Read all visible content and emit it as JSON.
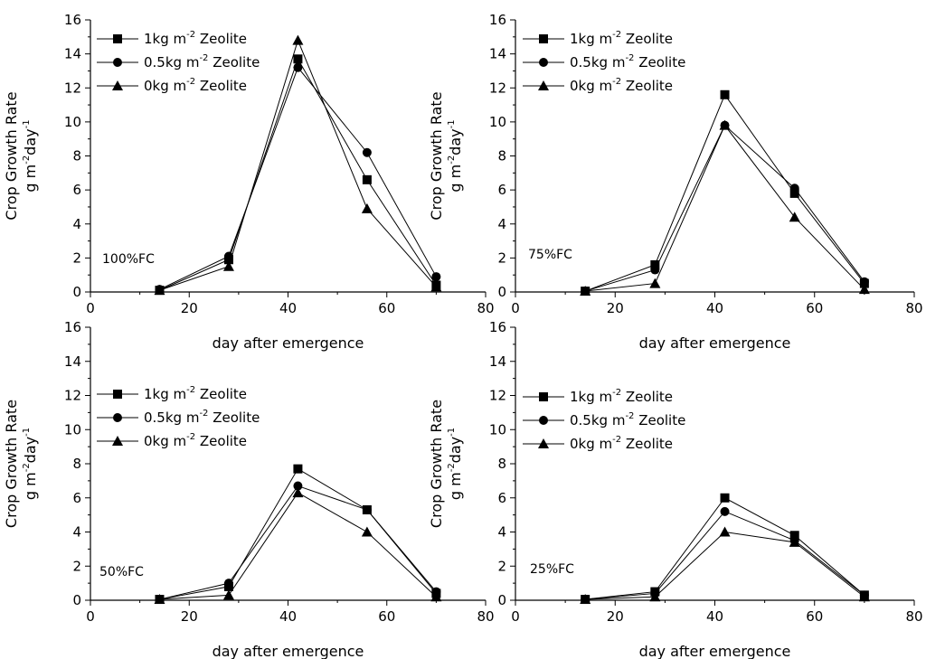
{
  "chart_data": [
    {
      "type": "line",
      "panel_label": "100%FC",
      "xlabel": "day after emergence",
      "ylabel": "Crop Growth Rate",
      "yunit": "g m-2day-1",
      "xlim": [
        0,
        80
      ],
      "ylim": [
        0,
        16
      ],
      "xticks": [
        "0",
        "20",
        "40",
        "60",
        "80"
      ],
      "yticks": [
        "0",
        "2",
        "4",
        "6",
        "8",
        "10",
        "12",
        "14",
        "16"
      ],
      "x": [
        14,
        28,
        42,
        56,
        70
      ],
      "series": [
        {
          "name": "1kg m-2 Zeolite",
          "marker": "square",
          "values": [
            0.1,
            1.9,
            13.7,
            6.6,
            0.4
          ]
        },
        {
          "name": "0.5kg m-2 Zeolite",
          "marker": "circle",
          "values": [
            0.15,
            2.1,
            13.2,
            8.2,
            0.9
          ]
        },
        {
          "name": "0kg m-2 Zeolite",
          "marker": "triangle",
          "values": [
            0.1,
            1.5,
            14.8,
            4.9,
            0.3
          ]
        }
      ]
    },
    {
      "type": "line",
      "panel_label": "75%FC",
      "xlabel": "day after emergence",
      "ylabel": "Crop Growth Rate",
      "yunit": "g m-2day-1",
      "xlim": [
        0,
        80
      ],
      "ylim": [
        0,
        16
      ],
      "xticks": [
        "0",
        "20",
        "40",
        "60",
        "80"
      ],
      "yticks": [
        "0",
        "2",
        "4",
        "6",
        "8",
        "10",
        "12",
        "14",
        "16"
      ],
      "x": [
        14,
        28,
        42,
        56,
        70
      ],
      "series": [
        {
          "name": "1kg m-2 Zeolite",
          "marker": "square",
          "values": [
            0.05,
            1.6,
            11.6,
            5.8,
            0.5
          ]
        },
        {
          "name": "0.5kg m-2 Zeolite",
          "marker": "circle",
          "values": [
            0.05,
            1.3,
            9.8,
            6.1,
            0.6
          ]
        },
        {
          "name": "0kg m-2 Zeolite",
          "marker": "triangle",
          "values": [
            0.05,
            0.5,
            9.8,
            4.4,
            0.15
          ]
        }
      ]
    },
    {
      "type": "line",
      "panel_label": "50%FC",
      "xlabel": "day after emergence",
      "ylabel": "Crop Growth Rate",
      "yunit": "g m-2day-1",
      "xlim": [
        0,
        80
      ],
      "ylim": [
        0,
        16
      ],
      "xticks": [
        "0",
        "20",
        "40",
        "60",
        "80"
      ],
      "yticks": [
        "0",
        "2",
        "4",
        "6",
        "8",
        "10",
        "12",
        "14",
        "16"
      ],
      "x": [
        14,
        28,
        42,
        56,
        70
      ],
      "series": [
        {
          "name": "1kg m-2 Zeolite",
          "marker": "square",
          "values": [
            0.05,
            0.8,
            7.7,
            5.3,
            0.4
          ]
        },
        {
          "name": "0.5kg m-2 Zeolite",
          "marker": "circle",
          "values": [
            0.05,
            1.0,
            6.7,
            5.3,
            0.5
          ]
        },
        {
          "name": "0kg m-2 Zeolite",
          "marker": "triangle",
          "values": [
            0.05,
            0.3,
            6.3,
            4.0,
            0.2
          ]
        }
      ]
    },
    {
      "type": "line",
      "panel_label": "25%FC",
      "xlabel": "day after emergence",
      "ylabel": "Crop Growth Rate",
      "yunit": "g m-2day-1",
      "xlim": [
        0,
        80
      ],
      "ylim": [
        0,
        16
      ],
      "xticks": [
        "0",
        "20",
        "40",
        "60",
        "80"
      ],
      "yticks": [
        "0",
        "2",
        "4",
        "6",
        "8",
        "10",
        "12",
        "14",
        "16"
      ],
      "x": [
        14,
        28,
        42,
        56,
        70
      ],
      "series": [
        {
          "name": "1kg m-2 Zeolite",
          "marker": "square",
          "values": [
            0.05,
            0.5,
            6.0,
            3.8,
            0.3
          ]
        },
        {
          "name": "0.5kg m-2 Zeolite",
          "marker": "circle",
          "values": [
            0.05,
            0.4,
            5.2,
            3.5,
            0.3
          ]
        },
        {
          "name": "0kg m-2 Zeolite",
          "marker": "triangle",
          "values": [
            0.05,
            0.2,
            4.0,
            3.4,
            0.2
          ]
        }
      ]
    }
  ]
}
